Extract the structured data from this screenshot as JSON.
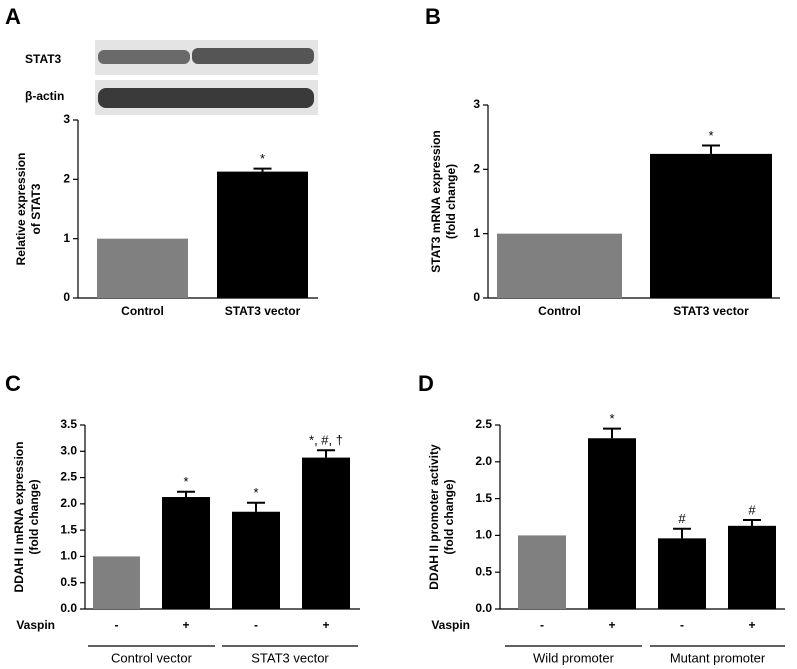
{
  "chart_data": [
    {
      "type": "bar",
      "panel": "A",
      "blot_labels": [
        "STAT3",
        "β-actin"
      ],
      "ylabel": [
        "Relative expression",
        "of STAT3"
      ],
      "categories": [
        "Control",
        "STAT3 vector"
      ],
      "values": [
        1.0,
        2.13
      ],
      "errors": [
        null,
        0.05
      ],
      "annotations": [
        null,
        "*"
      ],
      "colors": [
        "#808080",
        "#000000"
      ],
      "ylim": [
        0,
        3
      ],
      "yticks": [
        0,
        1,
        2,
        3
      ]
    },
    {
      "type": "bar",
      "panel": "B",
      "ylabel": [
        "STAT3 mRNA expression",
        "(fold change)"
      ],
      "categories": [
        "Control",
        "STAT3 vector"
      ],
      "values": [
        1.0,
        2.24
      ],
      "errors": [
        null,
        0.13
      ],
      "annotations": [
        null,
        "*"
      ],
      "colors": [
        "#808080",
        "#000000"
      ],
      "ylim": [
        0,
        3
      ],
      "yticks": [
        0,
        1,
        2,
        3
      ]
    },
    {
      "type": "bar",
      "panel": "C",
      "ylabel": [
        "DDAH II mRNA expression",
        "(fold change)"
      ],
      "x_row_label": "Vaspin",
      "categories": [
        "-",
        "+",
        "-",
        "+"
      ],
      "groups": [
        "Control vector",
        "STAT3 vector"
      ],
      "values": [
        1.0,
        2.13,
        1.85,
        2.88
      ],
      "errors": [
        null,
        0.1,
        0.17,
        0.14
      ],
      "annotations": [
        null,
        "*",
        "*",
        "*, #, †"
      ],
      "colors": [
        "#808080",
        "#000000",
        "#000000",
        "#000000"
      ],
      "ylim": [
        0,
        3.5
      ],
      "yticks": [
        {
          "value": 0,
          "label": "0.0"
        },
        0.5,
        {
          "value": 1,
          "label": "1.0"
        },
        1.5,
        {
          "value": 2,
          "label": "2.0"
        },
        2.5,
        {
          "value": 3,
          "label": "3.0"
        },
        3.5
      ]
    },
    {
      "type": "bar",
      "panel": "D",
      "ylabel": [
        "DDAH II promoter activity",
        "(fold change)"
      ],
      "x_row_label": "Vaspin",
      "categories": [
        "-",
        "+",
        "-",
        "+"
      ],
      "groups": [
        "Wild promoter",
        "Mutant promoter"
      ],
      "values": [
        1.0,
        2.32,
        0.96,
        1.13
      ],
      "errors": [
        null,
        0.13,
        0.13,
        0.08
      ],
      "annotations": [
        null,
        "*",
        "#",
        "#"
      ],
      "colors": [
        "#808080",
        "#000000",
        "#000000",
        "#000000"
      ],
      "ylim": [
        0,
        2.5
      ],
      "yticks": [
        {
          "value": 0,
          "label": "0.0"
        },
        0.5,
        {
          "value": 1,
          "label": "1.0"
        },
        1.5,
        {
          "value": 2,
          "label": "2.0"
        },
        2.5
      ]
    }
  ]
}
